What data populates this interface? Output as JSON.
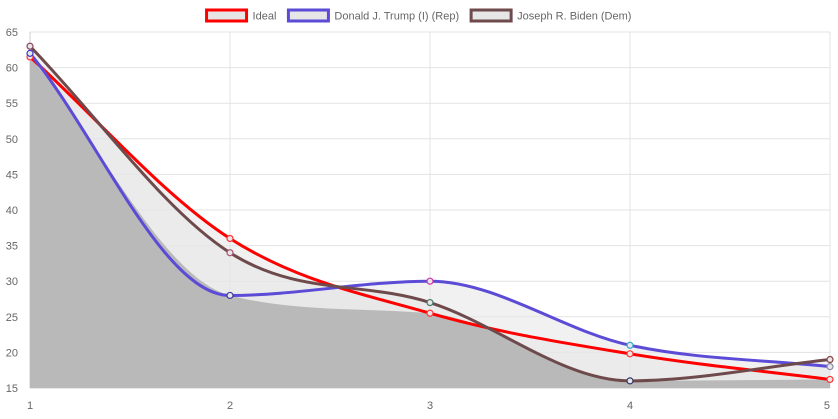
{
  "chart_data": {
    "type": "line",
    "title": "",
    "xlabel": "",
    "ylabel": "",
    "x": [
      1,
      2,
      3,
      4,
      5
    ],
    "xlim": [
      1,
      5
    ],
    "ylim": [
      15,
      65
    ],
    "yticks": [
      15,
      20,
      25,
      30,
      35,
      40,
      45,
      50,
      55,
      60,
      65
    ],
    "grid": true,
    "legend_position": "top-center",
    "series": [
      {
        "name": "Ideal",
        "values": [
          61.5,
          36,
          25.5,
          19.8,
          16.2
        ],
        "color": "#ff0000",
        "fill": "#e6e6e6"
      },
      {
        "name": "Donald J. Trump (I) (Rep)",
        "values": [
          62,
          28,
          30,
          21,
          18
        ],
        "color": "#5b4bd6",
        "fill": "#e6e6e6"
      },
      {
        "name": "Joseph R. Biden (Dem)",
        "values": [
          63,
          34,
          27,
          16,
          19
        ],
        "color": "#6e4a4c",
        "fill": "#e6e6e6"
      }
    ],
    "area_fill": "#b9b9b9",
    "point_colors": [
      [
        "#ff3333",
        "#ff3333",
        "#ff3333",
        "#ff3333",
        "#ff3333"
      ],
      [
        "#3c3ccc",
        "#3c3c99",
        "#cc33aa",
        "#33aacc",
        "#8888aa"
      ],
      [
        "#884466",
        "#aa5577",
        "#447766",
        "#333366",
        "#884444"
      ]
    ]
  }
}
